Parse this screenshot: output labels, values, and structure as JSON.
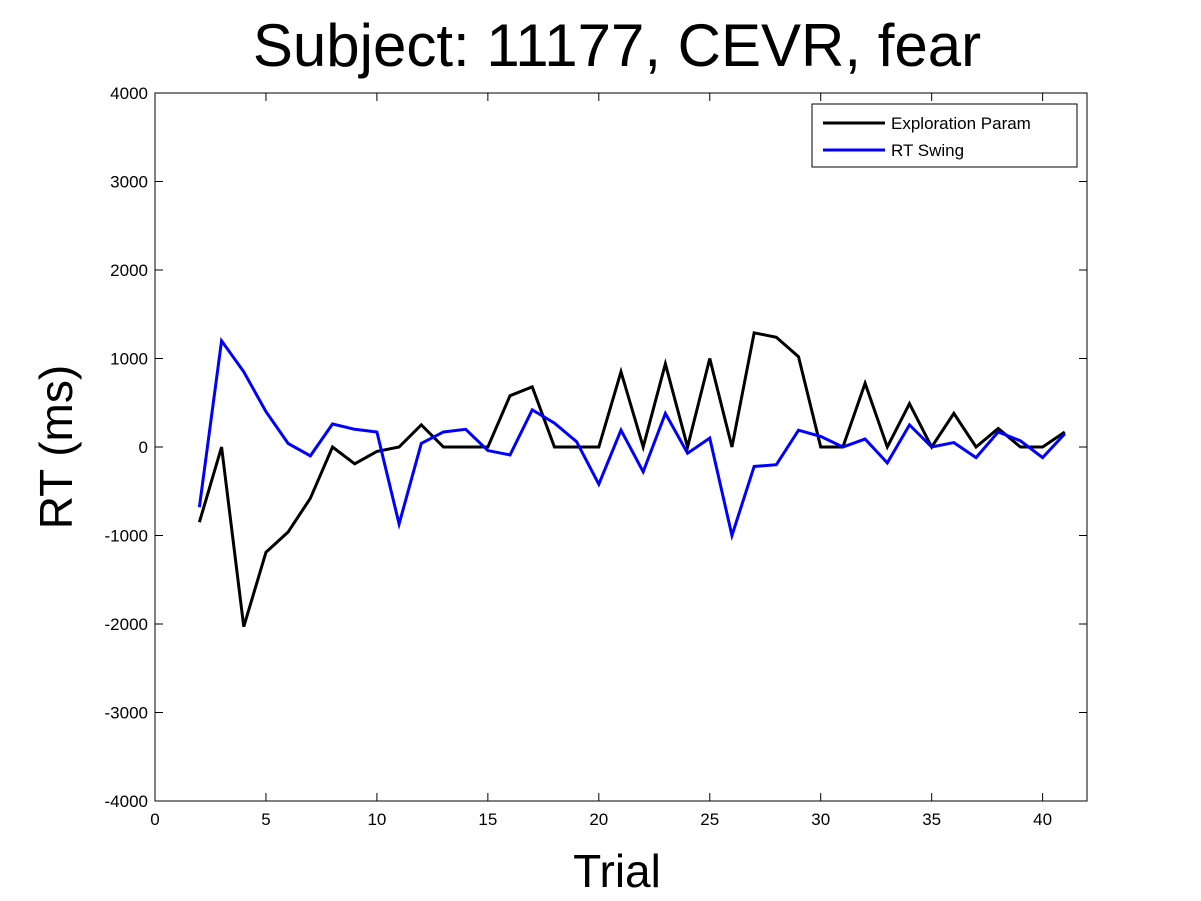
{
  "chart_data": {
    "type": "line",
    "title": "Subject: 11177, CEVR, fear",
    "xlabel": "Trial",
    "ylabel": "RT (ms)",
    "xlim": [
      0,
      42
    ],
    "ylim": [
      -4000,
      4000
    ],
    "xticks": [
      0,
      5,
      10,
      15,
      20,
      25,
      30,
      35,
      40
    ],
    "yticks": [
      -4000,
      -3000,
      -2000,
      -1000,
      0,
      1000,
      2000,
      3000,
      4000
    ],
    "grid": false,
    "legend_position": "top-right",
    "x": [
      2,
      3,
      4,
      5,
      6,
      7,
      8,
      9,
      10,
      11,
      12,
      13,
      14,
      15,
      16,
      17,
      18,
      19,
      20,
      21,
      22,
      23,
      24,
      25,
      26,
      27,
      28,
      29,
      30,
      31,
      32,
      33,
      34,
      35,
      36,
      37,
      38,
      39,
      40,
      41
    ],
    "series": [
      {
        "name": "Exploration Param",
        "color": "#000000",
        "values": [
          -850,
          0,
          -2030,
          -1190,
          -960,
          -580,
          0,
          -190,
          -50,
          0,
          250,
          0,
          0,
          0,
          580,
          680,
          0,
          0,
          0,
          850,
          0,
          940,
          0,
          1000,
          0,
          1290,
          1240,
          1020,
          0,
          0,
          720,
          0,
          490,
          0,
          380,
          0,
          210,
          0,
          0,
          170
        ]
      },
      {
        "name": "RT Swing",
        "color": "#0000ff",
        "values": [
          -680,
          1200,
          850,
          400,
          40,
          -100,
          260,
          200,
          170,
          -870,
          40,
          170,
          200,
          -40,
          -90,
          420,
          270,
          60,
          -420,
          190,
          -280,
          380,
          -70,
          100,
          -1000,
          -220,
          -200,
          190,
          120,
          0,
          90,
          -180,
          250,
          0,
          50,
          -120,
          170,
          70,
          -120,
          150
        ]
      }
    ]
  }
}
